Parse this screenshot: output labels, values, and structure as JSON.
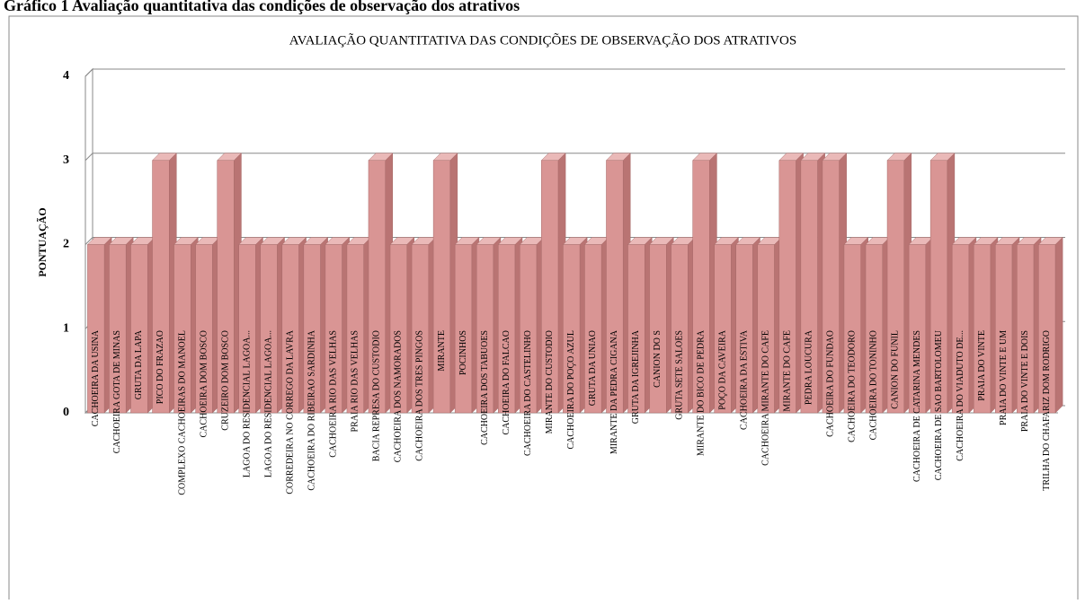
{
  "caption": "Gráfico 1 Avaliação quantitativa das condições de observação dos atrativos",
  "chart_data": {
    "type": "bar3d",
    "title": "AVALIAÇÃO QUANTITATIVA DAS CONDIÇÕES DE OBSERVAÇÃO DOS ATRATIVOS",
    "y_label": "PONTUAÇÃO",
    "color": "#d99594",
    "ylim": [
      0,
      4
    ],
    "yticks": [
      0,
      1,
      2,
      3,
      4
    ],
    "grid": true,
    "categories": [
      "CACHOEIRA DA USINA",
      "CACHOEIRA GOTA DE MINAS",
      "GRUTA DA LAPA",
      "PICO DO FRAZAO",
      "COMPLEXO CACHOEIRAS DO MANOEL",
      "CACHOEIRA DOM BOSCO",
      "CRUZEIRO DOM BOSCO",
      "LAGOA DO RESIDENCIAL LAGOA...",
      "LAGOA DO RESIDENCIAL LAGOA...",
      "CORREDEIRA NO CORREGO DA LAVRA",
      "CACHOEIRA DO RIBEIRAO SARDINHA",
      "CACHOEIRA RIO DAS VELHAS",
      "PRAIA RIO DAS VELHAS",
      "BACIA REPRESA DO CUSTODIO",
      "CACHOEIRA DOS NAMORADOS",
      "CACHOEIRA DOS TRES PINGOS",
      "MIRANTE",
      "POCINHOS",
      "CACHOEIRA DOS TABUOES",
      "CACHOEIRA DO FALCAO",
      "CACHOEIRA DO CASTELINHO",
      "MIRANTE DO CUSTODIO",
      "CACHOEIRA DO POÇO AZUL",
      "GRUTA DA UNIAO",
      "MIRANTE DA PEDRA CIGANA",
      "GRUTA DA IGREJINHA",
      "CANION DO S",
      "GRUTA SETE SALOES",
      "MIRANTE DO BICO DE PEDRA",
      "POÇO DA CAVEIRA",
      "CACHOEIRA DA ESTIVA",
      "CACHOEIRA MIRANTE DO CAFE",
      "MIRANTE DO CAFE",
      "PEDRA LOUCURA",
      "CACHOEIRA DO FUNDAO",
      "CACHOEIRA DO TEODORO",
      "CACHOEIRA DO TONINHO",
      "CANION DO FUNIL",
      "CACHOEIRA DE CATARINA MENDES",
      "CACHOEIRA DE SAO BARTOLOMEU",
      "CACHOEIRA DO VIADUTO DE...",
      "PRAIA DO VINTE",
      "PRAIA DO VINTE E UM",
      "PRAIA DO VINTE E DOIS",
      "TRILHA DO CHAFARIZ DOM RODRIGO"
    ],
    "values": [
      2,
      2,
      2,
      3,
      2,
      2,
      3,
      2,
      2,
      2,
      2,
      2,
      2,
      3,
      2,
      2,
      3,
      2,
      2,
      2,
      2,
      3,
      2,
      2,
      3,
      2,
      2,
      2,
      3,
      2,
      2,
      2,
      3,
      3,
      3,
      2,
      2,
      3,
      2,
      3,
      2,
      2,
      2,
      2,
      2
    ]
  }
}
